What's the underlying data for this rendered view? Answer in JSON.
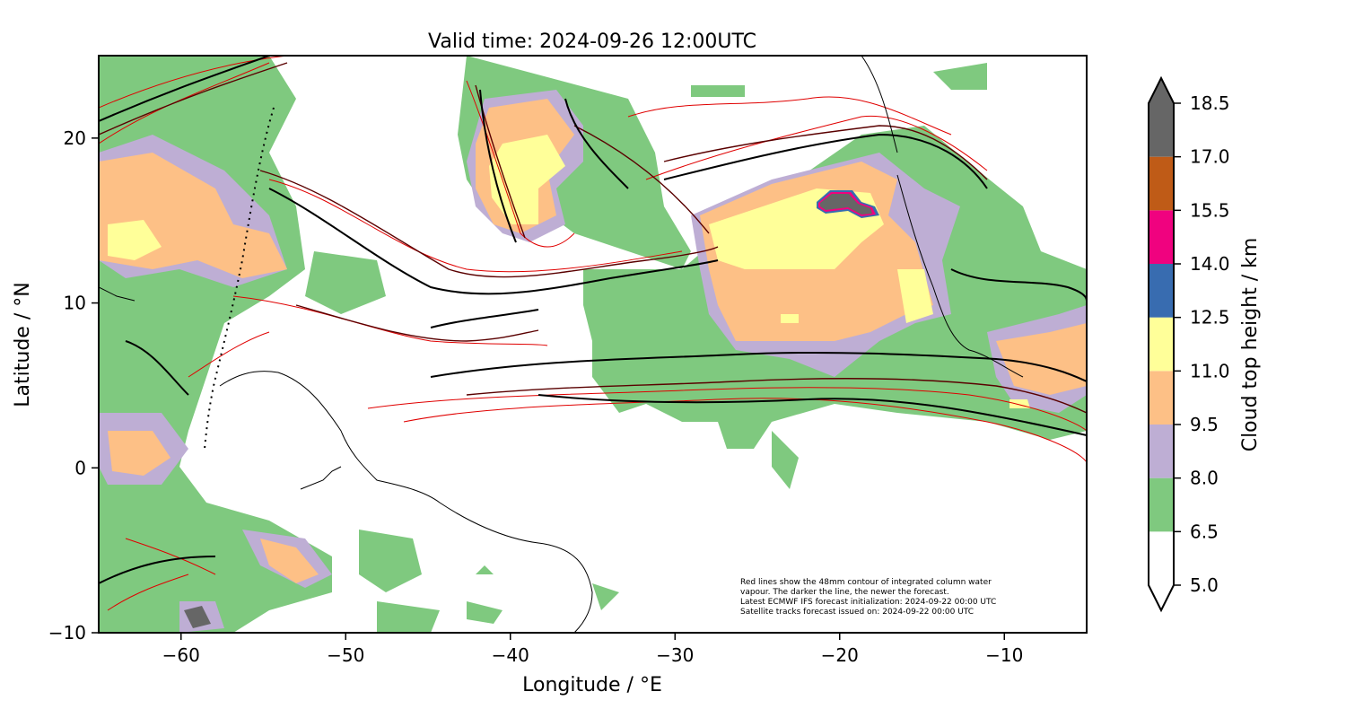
{
  "map": {
    "title": "Valid time: 2024-09-26 12:00UTC",
    "xlabel": "Longitude / °E",
    "ylabel": "Latitude / °N",
    "xlim": [
      -65,
      -5
    ],
    "ylim": [
      -10,
      25
    ],
    "xticks": [
      {
        "value": -60,
        "label": "−60"
      },
      {
        "value": -50,
        "label": "−50"
      },
      {
        "value": -40,
        "label": "−40"
      },
      {
        "value": -30,
        "label": "−30"
      },
      {
        "value": -20,
        "label": "−20"
      },
      {
        "value": -10,
        "label": "−10"
      }
    ],
    "yticks": [
      {
        "value": -10,
        "label": "−10"
      },
      {
        "value": 0,
        "label": "0"
      },
      {
        "value": 10,
        "label": "10"
      },
      {
        "value": 20,
        "label": "20"
      }
    ],
    "note_lines": [
      "Red lines show the 48mm contour of integrated column water",
      "vapour. The darker the line, the newer the forecast.",
      "Latest ECMWF IFS forecast initialization: 2024-09-22 00:00 UTC",
      "Satellite tracks forecast issued on: 2024-09-22 00:00 UTC"
    ]
  },
  "colorbar": {
    "label": "Cloud top height / km",
    "levels": [
      "5.0",
      "6.5",
      "8.0",
      "9.5",
      "11.0",
      "12.5",
      "14.0",
      "15.5",
      "17.0",
      "18.5"
    ],
    "bins": [
      {
        "from": 5.0,
        "to": 6.5,
        "color": "#ffffff"
      },
      {
        "from": 6.5,
        "to": 8.0,
        "color": "#7fc97f"
      },
      {
        "from": 8.0,
        "to": 9.5,
        "color": "#beaed4"
      },
      {
        "from": 9.5,
        "to": 11.0,
        "color": "#fdc086"
      },
      {
        "from": 11.0,
        "to": 12.5,
        "color": "#ffff99"
      },
      {
        "from": 12.5,
        "to": 14.0,
        "color": "#386cb0"
      },
      {
        "from": 14.0,
        "to": 15.5,
        "color": "#f0027f"
      },
      {
        "from": 15.5,
        "to": 17.0,
        "color": "#bf5b17"
      },
      {
        "from": 17.0,
        "to": 18.5,
        "color": "#666666"
      }
    ],
    "extend": "both"
  }
}
